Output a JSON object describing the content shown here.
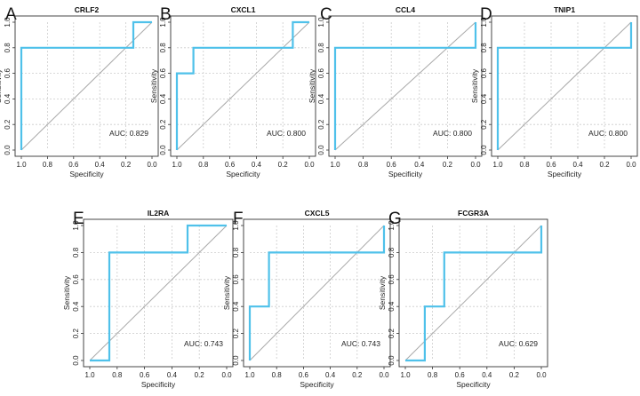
{
  "figure": {
    "roc_color": "#4fc1ea",
    "diagonal_color": "#a9a9a9",
    "grid_color": "#cccccc"
  },
  "chart_data": [
    {
      "type": "line",
      "panel": "A",
      "title": "CRLF2",
      "xlabel": "Specificity",
      "ylabel": "Sensitivity",
      "xlim": [
        1.0,
        0.0
      ],
      "ylim": [
        0.0,
        1.0
      ],
      "xticks": [
        "1.0",
        "0.8",
        "0.6",
        "0.4",
        "0.2",
        "0.0"
      ],
      "yticks": [
        "0.0",
        "0.2",
        "0.4",
        "0.6",
        "0.8",
        "1.0"
      ],
      "grid": true,
      "diagonal": true,
      "auc_text": "AUC: 0.829",
      "x": [
        1.0,
        1.0,
        0.143,
        0.143,
        0.0
      ],
      "y": [
        0.0,
        0.8,
        0.8,
        1.0,
        1.0
      ]
    },
    {
      "type": "line",
      "panel": "B",
      "title": "CXCL1",
      "xlabel": "Specificity",
      "ylabel": "Sensitivity",
      "xlim": [
        1.0,
        0.0
      ],
      "ylim": [
        0.0,
        1.0
      ],
      "xticks": [
        "1.0",
        "0.8",
        "0.6",
        "0.4",
        "0.2",
        "0.0"
      ],
      "yticks": [
        "0.0",
        "0.2",
        "0.4",
        "0.6",
        "0.8",
        "1.0"
      ],
      "grid": true,
      "diagonal": true,
      "auc_text": "AUC: 0.800",
      "x": [
        1.0,
        1.0,
        0.875,
        0.875,
        0.125,
        0.125,
        0.0
      ],
      "y": [
        0.0,
        0.6,
        0.6,
        0.8,
        0.8,
        1.0,
        1.0
      ]
    },
    {
      "type": "line",
      "panel": "C",
      "title": "CCL4",
      "xlabel": "Specificity",
      "ylabel": "Sensitivity",
      "xlim": [
        1.0,
        0.0
      ],
      "ylim": [
        0.0,
        1.0
      ],
      "xticks": [
        "1.0",
        "0.8",
        "0.6",
        "0.4",
        "0.2",
        "0.0"
      ],
      "yticks": [
        "0.0",
        "0.2",
        "0.4",
        "0.6",
        "0.8",
        "1.0"
      ],
      "grid": true,
      "diagonal": true,
      "auc_text": "AUC: 0.800",
      "x": [
        1.0,
        1.0,
        0.0,
        0.0
      ],
      "y": [
        0.0,
        0.8,
        0.8,
        1.0
      ]
    },
    {
      "type": "line",
      "panel": "D",
      "title": "TNIP1",
      "xlabel": "Specificity",
      "ylabel": "Sensitivity",
      "xlim": [
        1.0,
        0.0
      ],
      "ylim": [
        0.0,
        1.0
      ],
      "xticks": [
        "1.0",
        "0.8",
        "0.6",
        "0.4",
        "0.2",
        "0.0"
      ],
      "yticks": [
        "0.0",
        "0.2",
        "0.4",
        "0.6",
        "0.8",
        "1.0"
      ],
      "grid": true,
      "diagonal": true,
      "auc_text": "AUC: 0.800",
      "x": [
        1.0,
        1.0,
        0.0,
        0.0
      ],
      "y": [
        0.0,
        0.8,
        0.8,
        1.0
      ]
    },
    {
      "type": "line",
      "panel": "E",
      "title": "IL2RA",
      "xlabel": "Specificity",
      "ylabel": "Sensitivity",
      "xlim": [
        1.0,
        0.0
      ],
      "ylim": [
        0.0,
        1.0
      ],
      "xticks": [
        "1.0",
        "0.8",
        "0.6",
        "0.4",
        "0.2",
        "0.0"
      ],
      "yticks": [
        "0.0",
        "0.2",
        "0.4",
        "0.6",
        "0.8",
        "1.0"
      ],
      "grid": true,
      "diagonal": true,
      "auc_text": "AUC: 0.743",
      "x": [
        1.0,
        0.857,
        0.857,
        0.286,
        0.286,
        0.0
      ],
      "y": [
        0.0,
        0.0,
        0.8,
        0.8,
        1.0,
        1.0
      ]
    },
    {
      "type": "line",
      "panel": "F",
      "title": "CXCL5",
      "xlabel": "Specificity",
      "ylabel": "Sensitivity",
      "xlim": [
        1.0,
        0.0
      ],
      "ylim": [
        0.0,
        1.0
      ],
      "xticks": [
        "1.0",
        "0.8",
        "0.6",
        "0.4",
        "0.2",
        "0.0"
      ],
      "yticks": [
        "0.0",
        "0.2",
        "0.4",
        "0.6",
        "0.8",
        "1.0"
      ],
      "grid": true,
      "diagonal": true,
      "auc_text": "AUC: 0.743",
      "x": [
        1.0,
        1.0,
        0.857,
        0.857,
        0.0,
        0.0
      ],
      "y": [
        0.0,
        0.4,
        0.4,
        0.8,
        0.8,
        1.0
      ]
    },
    {
      "type": "line",
      "panel": "G",
      "title": "FCGR3A",
      "xlabel": "Specificity",
      "ylabel": "Sensitivity",
      "xlim": [
        1.0,
        0.0
      ],
      "ylim": [
        0.0,
        1.0
      ],
      "xticks": [
        "1.0",
        "0.8",
        "0.6",
        "0.4",
        "0.2",
        "0.0"
      ],
      "yticks": [
        "0.0",
        "0.2",
        "0.4",
        "0.6",
        "0.8",
        "1.0"
      ],
      "grid": true,
      "diagonal": true,
      "auc_text": "AUC: 0.629",
      "x": [
        1.0,
        0.857,
        0.857,
        0.714,
        0.714,
        0.0,
        0.0
      ],
      "y": [
        0.0,
        0.0,
        0.4,
        0.4,
        0.8,
        0.8,
        1.0
      ]
    }
  ]
}
